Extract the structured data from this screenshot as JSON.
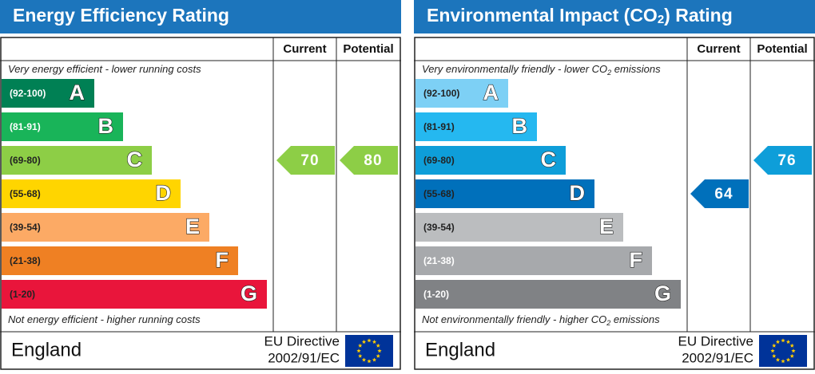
{
  "panels": [
    {
      "title": [
        "Energy Efficiency Rating"
      ],
      "headers": [
        "Current",
        "Potential"
      ],
      "top_note": [
        "Very energy efficient - lower running costs"
      ],
      "bottom_note": [
        "Not energy efficient - higher running costs"
      ],
      "bands": [
        {
          "range": "(92-100)",
          "letter": "A",
          "color": "#008054",
          "text_color": "#ffffff"
        },
        {
          "range": "(81-91)",
          "letter": "B",
          "color": "#19b459",
          "text_color": "#ffffff"
        },
        {
          "range": "(69-80)",
          "letter": "C",
          "color": "#8dce46",
          "text_color": "#222222"
        },
        {
          "range": "(55-68)",
          "letter": "D",
          "color": "#ffd500",
          "text_color": "#222222"
        },
        {
          "range": "(39-54)",
          "letter": "E",
          "color": "#fcaa65",
          "text_color": "#222222"
        },
        {
          "range": "(21-38)",
          "letter": "F",
          "color": "#ef8023",
          "text_color": "#222222"
        },
        {
          "range": "(1-20)",
          "letter": "G",
          "color": "#e9153b",
          "text_color": "#222222"
        }
      ],
      "current": {
        "value": 70,
        "color": "#8dce46"
      },
      "potential": {
        "value": 80,
        "color": "#8dce46"
      },
      "country": "England",
      "directive": [
        "EU Directive",
        "2002/91/EC"
      ]
    },
    {
      "title": [
        "Environmental Impact (CO",
        "2",
        ") Rating"
      ],
      "headers": [
        "Current",
        "Potential"
      ],
      "top_note": [
        "Very environmentally friendly - lower CO",
        "2",
        " emissions"
      ],
      "bottom_note": [
        "Not environmentally friendly - higher CO",
        "2",
        " emissions"
      ],
      "bands": [
        {
          "range": "(92-100)",
          "letter": "A",
          "color": "#7dd0f5",
          "text_color": "#222222"
        },
        {
          "range": "(81-91)",
          "letter": "B",
          "color": "#25b8f0",
          "text_color": "#222222"
        },
        {
          "range": "(69-80)",
          "letter": "C",
          "color": "#0e9ed9",
          "text_color": "#222222"
        },
        {
          "range": "(55-68)",
          "letter": "D",
          "color": "#0070bb",
          "text_color": "#222222"
        },
        {
          "range": "(39-54)",
          "letter": "E",
          "color": "#bbbdbf",
          "text_color": "#222222"
        },
        {
          "range": "(21-38)",
          "letter": "F",
          "color": "#a7a9ac",
          "text_color": "#ffffff"
        },
        {
          "range": "(1-20)",
          "letter": "G",
          "color": "#808285",
          "text_color": "#ffffff"
        }
      ],
      "current": {
        "value": 64,
        "color": "#0070bb"
      },
      "potential": {
        "value": 76,
        "color": "#0e9ed9"
      },
      "country": "England",
      "directive": [
        "EU Directive",
        "2002/91/EC"
      ]
    }
  ]
}
